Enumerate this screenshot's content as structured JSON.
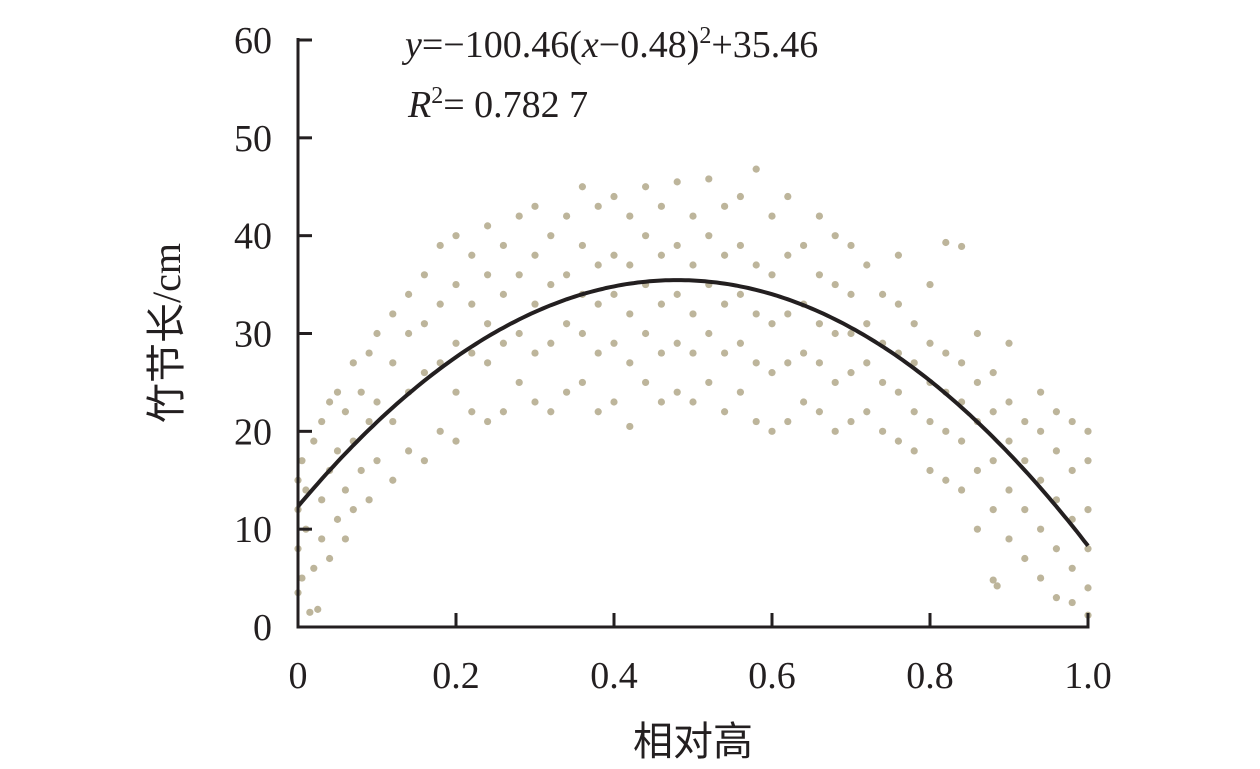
{
  "chart_data": {
    "type": "scatter",
    "xlabel": "相对高",
    "ylabel": "竹节长/cm",
    "xlim": [
      0,
      1.0
    ],
    "ylim": [
      0,
      60
    ],
    "xticks": [
      "0",
      "0.2",
      "0.4",
      "0.6",
      "0.8",
      "1.0"
    ],
    "yticks": [
      "0",
      "10",
      "20",
      "30",
      "40",
      "50",
      "60"
    ],
    "grid": false,
    "point_color": "#bdb59b",
    "line_color": "#231f20",
    "fit": {
      "equation_parts": {
        "y": "y",
        "eq1": "=−100.46(",
        "x": "x",
        "eq2": "−0.48)",
        "sup": "2",
        "eq3": "+35.46"
      },
      "r2_parts": {
        "R": "R",
        "sup": "2",
        "rest": "= 0.782 7"
      },
      "a": -100.46,
      "h": 0.48,
      "k": 35.46
    },
    "points": [
      [
        0.0,
        3.5
      ],
      [
        0.0,
        8
      ],
      [
        0.0,
        12
      ],
      [
        0.0,
        15
      ],
      [
        0.005,
        5
      ],
      [
        0.005,
        17
      ],
      [
        0.01,
        10
      ],
      [
        0.01,
        14
      ],
      [
        0.015,
        1.5
      ],
      [
        0.02,
        6
      ],
      [
        0.02,
        19
      ],
      [
        0.025,
        1.8
      ],
      [
        0.03,
        9
      ],
      [
        0.03,
        13
      ],
      [
        0.03,
        21
      ],
      [
        0.04,
        7
      ],
      [
        0.04,
        16
      ],
      [
        0.04,
        23
      ],
      [
        0.05,
        11
      ],
      [
        0.05,
        18
      ],
      [
        0.05,
        24
      ],
      [
        0.06,
        9
      ],
      [
        0.06,
        14
      ],
      [
        0.06,
        22
      ],
      [
        0.07,
        12
      ],
      [
        0.07,
        19
      ],
      [
        0.07,
        27
      ],
      [
        0.08,
        16
      ],
      [
        0.08,
        24
      ],
      [
        0.09,
        13
      ],
      [
        0.09,
        21
      ],
      [
        0.09,
        28
      ],
      [
        0.1,
        17
      ],
      [
        0.1,
        23
      ],
      [
        0.1,
        30
      ],
      [
        0.12,
        15
      ],
      [
        0.12,
        21
      ],
      [
        0.12,
        27
      ],
      [
        0.12,
        32
      ],
      [
        0.14,
        18
      ],
      [
        0.14,
        24
      ],
      [
        0.14,
        30
      ],
      [
        0.14,
        34
      ],
      [
        0.16,
        17
      ],
      [
        0.16,
        26
      ],
      [
        0.16,
        31
      ],
      [
        0.16,
        36
      ],
      [
        0.18,
        20
      ],
      [
        0.18,
        27
      ],
      [
        0.18,
        33
      ],
      [
        0.18,
        39
      ],
      [
        0.2,
        19
      ],
      [
        0.2,
        24
      ],
      [
        0.2,
        29
      ],
      [
        0.2,
        35
      ],
      [
        0.2,
        40
      ],
      [
        0.22,
        22
      ],
      [
        0.22,
        28
      ],
      [
        0.22,
        33
      ],
      [
        0.22,
        38
      ],
      [
        0.24,
        21
      ],
      [
        0.24,
        27
      ],
      [
        0.24,
        31
      ],
      [
        0.24,
        36
      ],
      [
        0.24,
        41
      ],
      [
        0.26,
        22
      ],
      [
        0.26,
        29
      ],
      [
        0.26,
        34
      ],
      [
        0.26,
        39
      ],
      [
        0.28,
        25
      ],
      [
        0.28,
        30
      ],
      [
        0.28,
        36
      ],
      [
        0.28,
        42
      ],
      [
        0.3,
        23
      ],
      [
        0.3,
        28
      ],
      [
        0.3,
        33
      ],
      [
        0.3,
        38
      ],
      [
        0.3,
        43
      ],
      [
        0.32,
        22
      ],
      [
        0.32,
        29
      ],
      [
        0.32,
        35
      ],
      [
        0.32,
        40
      ],
      [
        0.34,
        24
      ],
      [
        0.34,
        31
      ],
      [
        0.34,
        36
      ],
      [
        0.34,
        42
      ],
      [
        0.36,
        25
      ],
      [
        0.36,
        30
      ],
      [
        0.36,
        34
      ],
      [
        0.36,
        39
      ],
      [
        0.36,
        45
      ],
      [
        0.38,
        22
      ],
      [
        0.38,
        28
      ],
      [
        0.38,
        33
      ],
      [
        0.38,
        37
      ],
      [
        0.38,
        43
      ],
      [
        0.4,
        23
      ],
      [
        0.4,
        29
      ],
      [
        0.4,
        34
      ],
      [
        0.4,
        38
      ],
      [
        0.4,
        44
      ],
      [
        0.42,
        20.5
      ],
      [
        0.42,
        27
      ],
      [
        0.42,
        32
      ],
      [
        0.42,
        37
      ],
      [
        0.42,
        42
      ],
      [
        0.44,
        25
      ],
      [
        0.44,
        30
      ],
      [
        0.44,
        35
      ],
      [
        0.44,
        40
      ],
      [
        0.44,
        45
      ],
      [
        0.46,
        23
      ],
      [
        0.46,
        28
      ],
      [
        0.46,
        33
      ],
      [
        0.46,
        38
      ],
      [
        0.46,
        43
      ],
      [
        0.48,
        24
      ],
      [
        0.48,
        29
      ],
      [
        0.48,
        34
      ],
      [
        0.48,
        39
      ],
      [
        0.48,
        45.5
      ],
      [
        0.5,
        23
      ],
      [
        0.5,
        28
      ],
      [
        0.5,
        32
      ],
      [
        0.5,
        37
      ],
      [
        0.5,
        42
      ],
      [
        0.52,
        25
      ],
      [
        0.52,
        30
      ],
      [
        0.52,
        35
      ],
      [
        0.52,
        40
      ],
      [
        0.52,
        45.8
      ],
      [
        0.54,
        22
      ],
      [
        0.54,
        28
      ],
      [
        0.54,
        33
      ],
      [
        0.54,
        38
      ],
      [
        0.54,
        43
      ],
      [
        0.56,
        24
      ],
      [
        0.56,
        29
      ],
      [
        0.56,
        34
      ],
      [
        0.56,
        39
      ],
      [
        0.56,
        44
      ],
      [
        0.58,
        21
      ],
      [
        0.58,
        27
      ],
      [
        0.58,
        32
      ],
      [
        0.58,
        37
      ],
      [
        0.58,
        46.8
      ],
      [
        0.6,
        20
      ],
      [
        0.6,
        26
      ],
      [
        0.6,
        31
      ],
      [
        0.6,
        36
      ],
      [
        0.6,
        42
      ],
      [
        0.62,
        21
      ],
      [
        0.62,
        27
      ],
      [
        0.62,
        32
      ],
      [
        0.62,
        38
      ],
      [
        0.62,
        44
      ],
      [
        0.64,
        23
      ],
      [
        0.64,
        28
      ],
      [
        0.64,
        33
      ],
      [
        0.64,
        39
      ],
      [
        0.66,
        22
      ],
      [
        0.66,
        27
      ],
      [
        0.66,
        31
      ],
      [
        0.66,
        36
      ],
      [
        0.66,
        42
      ],
      [
        0.68,
        20
      ],
      [
        0.68,
        25
      ],
      [
        0.68,
        30
      ],
      [
        0.68,
        35
      ],
      [
        0.68,
        40
      ],
      [
        0.7,
        21
      ],
      [
        0.7,
        26
      ],
      [
        0.7,
        30
      ],
      [
        0.7,
        34
      ],
      [
        0.7,
        39
      ],
      [
        0.72,
        22
      ],
      [
        0.72,
        27
      ],
      [
        0.72,
        31
      ],
      [
        0.72,
        37
      ],
      [
        0.74,
        20
      ],
      [
        0.74,
        25
      ],
      [
        0.74,
        29
      ],
      [
        0.74,
        34
      ],
      [
        0.76,
        19
      ],
      [
        0.76,
        24
      ],
      [
        0.76,
        28
      ],
      [
        0.76,
        33
      ],
      [
        0.76,
        38
      ],
      [
        0.78,
        18
      ],
      [
        0.78,
        22
      ],
      [
        0.78,
        27
      ],
      [
        0.78,
        31
      ],
      [
        0.8,
        16
      ],
      [
        0.8,
        21
      ],
      [
        0.8,
        25
      ],
      [
        0.8,
        29
      ],
      [
        0.8,
        35
      ],
      [
        0.82,
        15
      ],
      [
        0.82,
        20
      ],
      [
        0.82,
        24
      ],
      [
        0.82,
        28
      ],
      [
        0.82,
        39.3
      ],
      [
        0.84,
        14
      ],
      [
        0.84,
        19
      ],
      [
        0.84,
        23
      ],
      [
        0.84,
        27
      ],
      [
        0.84,
        38.9
      ],
      [
        0.86,
        10
      ],
      [
        0.86,
        16
      ],
      [
        0.86,
        21
      ],
      [
        0.86,
        25
      ],
      [
        0.86,
        30
      ],
      [
        0.88,
        12
      ],
      [
        0.88,
        17
      ],
      [
        0.88,
        22
      ],
      [
        0.88,
        26
      ],
      [
        0.88,
        4.8
      ],
      [
        0.885,
        4.2
      ],
      [
        0.9,
        9
      ],
      [
        0.9,
        14
      ],
      [
        0.9,
        19
      ],
      [
        0.9,
        23
      ],
      [
        0.9,
        29
      ],
      [
        0.92,
        7
      ],
      [
        0.92,
        12
      ],
      [
        0.92,
        17
      ],
      [
        0.92,
        21
      ],
      [
        0.94,
        5
      ],
      [
        0.94,
        10
      ],
      [
        0.94,
        15
      ],
      [
        0.94,
        20
      ],
      [
        0.94,
        24
      ],
      [
        0.96,
        3
      ],
      [
        0.96,
        8
      ],
      [
        0.96,
        13
      ],
      [
        0.96,
        18
      ],
      [
        0.96,
        22
      ],
      [
        0.98,
        2.5
      ],
      [
        0.98,
        6
      ],
      [
        0.98,
        11
      ],
      [
        0.98,
        16
      ],
      [
        0.98,
        21
      ],
      [
        1.0,
        1.2
      ],
      [
        1.0,
        4
      ],
      [
        1.0,
        8
      ],
      [
        1.0,
        12
      ],
      [
        1.0,
        17
      ],
      [
        1.0,
        20
      ]
    ]
  }
}
